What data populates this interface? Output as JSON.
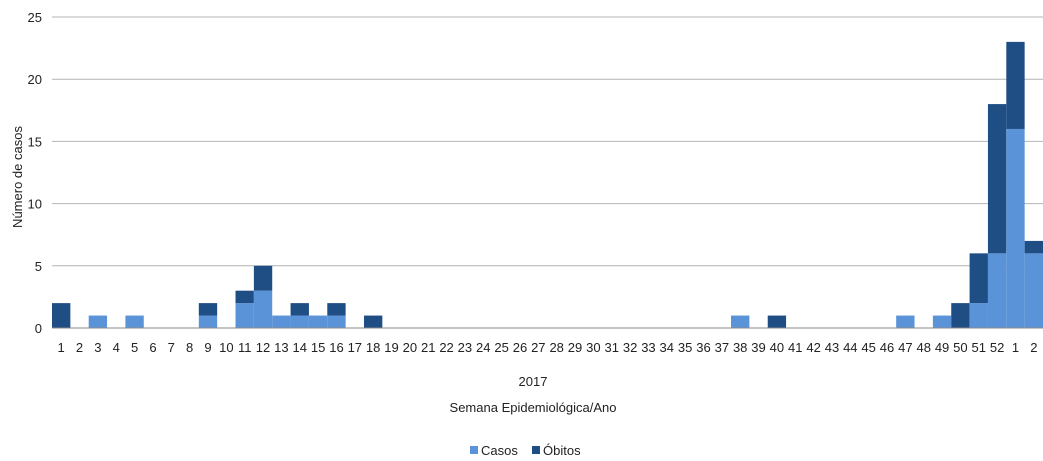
{
  "chart_data": {
    "type": "bar",
    "stacked": true,
    "title": "",
    "xlabel_year": "2017",
    "xlabel": "Semana Epidemiológica/Ano",
    "ylabel": "Número de casos",
    "ylim": [
      0,
      25
    ],
    "yticks": [
      0,
      5,
      10,
      15,
      20,
      25
    ],
    "grid": true,
    "legend_position": "bottom",
    "categories": [
      "1",
      "2",
      "3",
      "4",
      "5",
      "6",
      "7",
      "8",
      "9",
      "10",
      "11",
      "12",
      "13",
      "14",
      "15",
      "16",
      "17",
      "18",
      "19",
      "20",
      "21",
      "22",
      "23",
      "24",
      "25",
      "26",
      "27",
      "28",
      "29",
      "30",
      "31",
      "32",
      "33",
      "34",
      "35",
      "36",
      "37",
      "38",
      "39",
      "40",
      "41",
      "42",
      "43",
      "44",
      "45",
      "46",
      "47",
      "48",
      "49",
      "50",
      "51",
      "52",
      "1",
      "2"
    ],
    "series": [
      {
        "name": "Casos",
        "color": "#5b93d8",
        "values": [
          0,
          0,
          1,
          0,
          1,
          0,
          0,
          0,
          1,
          0,
          2,
          3,
          1,
          1,
          1,
          1,
          0,
          0,
          0,
          0,
          0,
          0,
          0,
          0,
          0,
          0,
          0,
          0,
          0,
          0,
          0,
          0,
          0,
          0,
          0,
          0,
          0,
          1,
          0,
          0,
          0,
          0,
          0,
          0,
          0,
          0,
          1,
          0,
          1,
          0,
          2,
          6,
          16,
          6
        ]
      },
      {
        "name": "Óbitos",
        "color": "#1f4e85",
        "values": [
          2,
          0,
          0,
          0,
          0,
          0,
          0,
          0,
          1,
          0,
          1,
          2,
          0,
          1,
          0,
          1,
          0,
          1,
          0,
          0,
          0,
          0,
          0,
          0,
          0,
          0,
          0,
          0,
          0,
          0,
          0,
          0,
          0,
          0,
          0,
          0,
          0,
          0,
          0,
          1,
          0,
          0,
          0,
          0,
          0,
          0,
          0,
          0,
          0,
          2,
          4,
          12,
          7,
          1
        ]
      }
    ]
  }
}
